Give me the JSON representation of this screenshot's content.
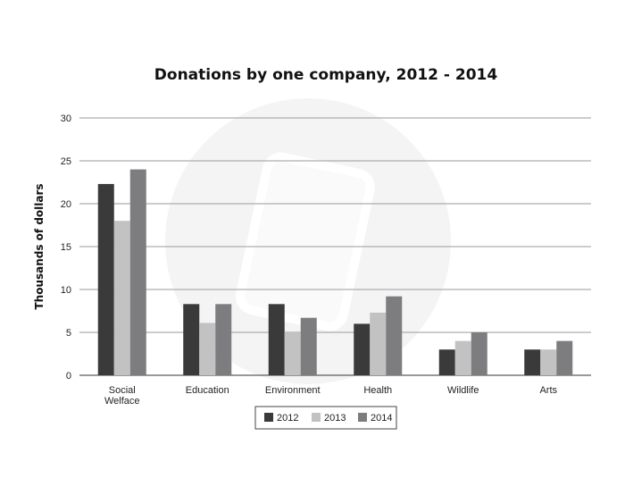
{
  "chart_data": {
    "type": "bar",
    "title": "Donations by one company, 2012 - 2014",
    "xlabel": "",
    "ylabel": "Thousands of dollars",
    "ylim": [
      0,
      30
    ],
    "yticks": [
      0,
      5,
      10,
      15,
      20,
      25,
      30
    ],
    "grid": true,
    "legend_position": "bottom",
    "categories": [
      [
        "Social",
        "Welface"
      ],
      [
        "Education"
      ],
      [
        "Environment"
      ],
      [
        "Health"
      ],
      [
        "Wildlife"
      ],
      [
        "Arts"
      ]
    ],
    "series": [
      {
        "name": "2012",
        "color": "#3a3a3a",
        "values": [
          22.3,
          8.3,
          8.3,
          6.0,
          3.0,
          3.0
        ]
      },
      {
        "name": "2013",
        "color": "#c2c2c2",
        "values": [
          18.0,
          6.1,
          5.1,
          7.3,
          4.0,
          3.0
        ]
      },
      {
        "name": "2014",
        "color": "#7d7d80",
        "values": [
          24.0,
          8.3,
          6.7,
          9.2,
          5.0,
          4.0
        ]
      }
    ]
  }
}
